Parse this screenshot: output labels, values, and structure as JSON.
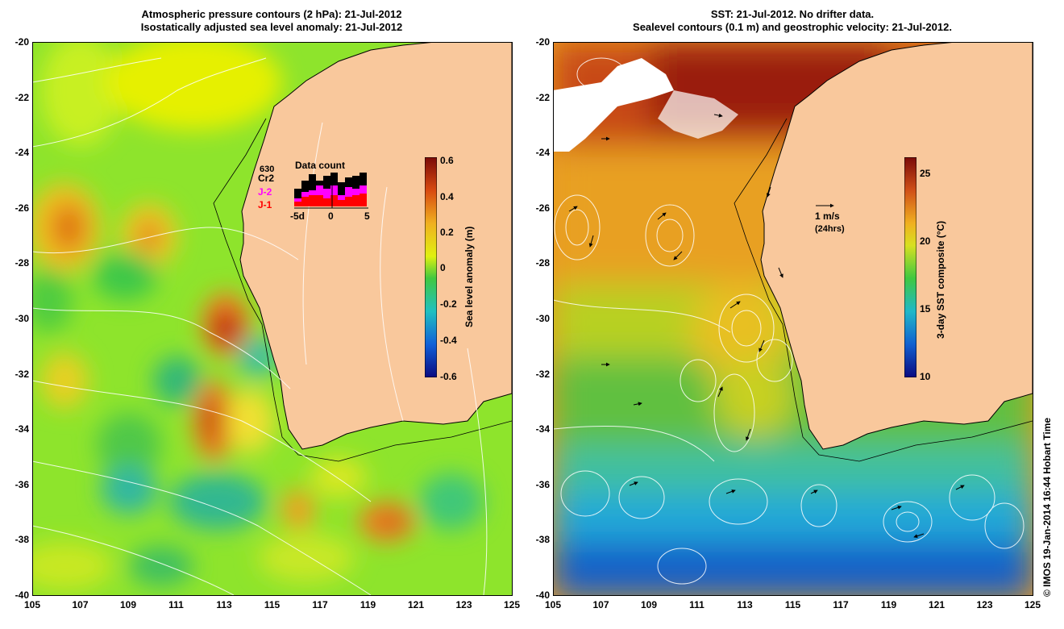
{
  "left_panel": {
    "title_line1": "Atmospheric pressure contours (2 hPa): 21-Jul-2012",
    "title_line2": "Isostatically adjusted sea level anomaly: 21-Jul-2012",
    "y_ticks": [
      "-20",
      "-22",
      "-24",
      "-26",
      "-28",
      "-30",
      "-32",
      "-34",
      "-36",
      "-38",
      "-40"
    ],
    "x_ticks": [
      "105",
      "107",
      "109",
      "111",
      "113",
      "115",
      "117",
      "119",
      "121",
      "123",
      "125"
    ],
    "colorbar": {
      "title": "Sea level anomaly (m)",
      "ticks": [
        "0.6",
        "0.4",
        "0.2",
        "0",
        "-0.2",
        "-0.4",
        "-0.6"
      ]
    },
    "data_count": {
      "title": "Data count",
      "labels": [
        "630",
        "Cr2",
        "J-2",
        "J-1"
      ],
      "x_ticks": [
        "-5d",
        "0",
        "5"
      ],
      "label_colors": [
        "#000000",
        "#000000",
        "#ff00ff",
        "#ff0000"
      ]
    }
  },
  "right_panel": {
    "title_line1": "SST: 21-Jul-2012. No drifter data.",
    "title_line2": "Sealevel contours (0.1 m) and geostrophic velocity: 21-Jul-2012.",
    "y_ticks": [
      "-20",
      "-22",
      "-24",
      "-26",
      "-28",
      "-30",
      "-32",
      "-34",
      "-36",
      "-38",
      "-40"
    ],
    "x_ticks": [
      "105",
      "107",
      "109",
      "111",
      "113",
      "115",
      "117",
      "119",
      "121",
      "123",
      "125"
    ],
    "colorbar": {
      "title": "3-day SST composite (°C)",
      "ticks": [
        "25",
        "20",
        "15",
        "10"
      ]
    },
    "velocity_key": {
      "label": "1 m/s",
      "sublabel": "(24hrs)"
    }
  },
  "credit": "© IMOS 19-Jan-2014 16:44 Hobart Time",
  "colors": {
    "land": "#f9c89c",
    "ocean_default": "#7ee02a",
    "contour": "#ffffff",
    "coastline": "#000000"
  }
}
